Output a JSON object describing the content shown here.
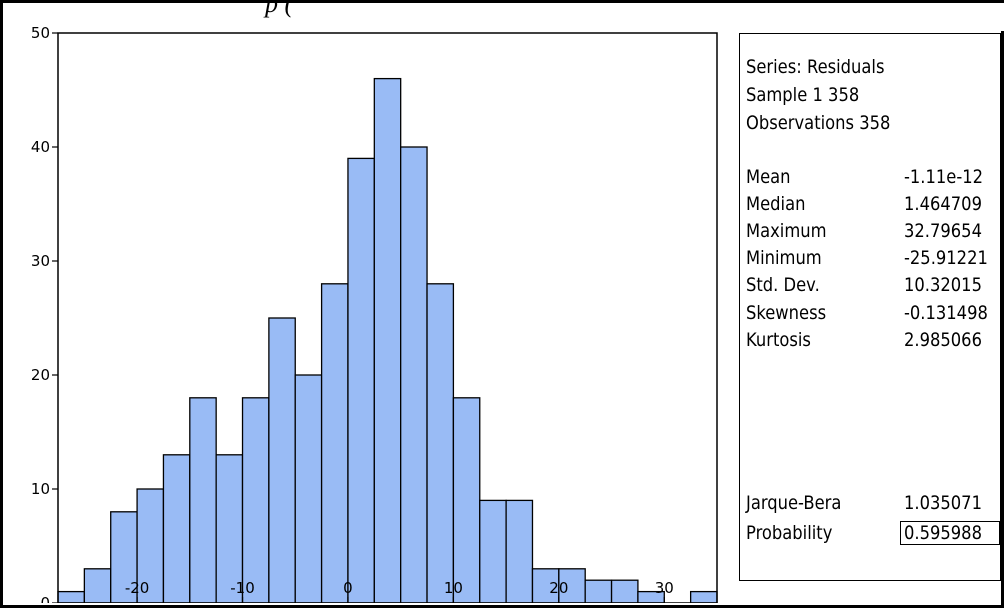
{
  "chart_data": {
    "type": "bar",
    "title": "",
    "xlabel": "",
    "ylabel": "",
    "bin_width": 2.5,
    "x_start": -27.5,
    "values": [
      1,
      3,
      8,
      10,
      13,
      18,
      13,
      18,
      25,
      20,
      28,
      39,
      46,
      40,
      28,
      18,
      9,
      9,
      3,
      3,
      2,
      2,
      1,
      0,
      1
    ],
    "xlim": [
      -27.5,
      35
    ],
    "ylim": [
      0,
      50
    ],
    "x_ticks": [
      -20,
      -10,
      0,
      10,
      20,
      30
    ],
    "y_ticks": [
      0,
      10,
      20,
      30,
      40,
      50
    ],
    "x_tick_labels": [
      "-20",
      "-10",
      "0",
      "10",
      "20",
      "30"
    ],
    "y_tick_labels": [
      "0",
      "10",
      "20",
      "30",
      "40",
      "50"
    ],
    "bar_color": "#99bbf5",
    "grid": false
  },
  "header_fragment": "p (",
  "stats": {
    "series_line": "Series: Residuals",
    "sample_line": "Sample 1 358",
    "observations_line": "Observations 358",
    "rows": [
      {
        "name": "Mean",
        "value": "-1.11e-12"
      },
      {
        "name": "Median",
        "value": "1.464709"
      },
      {
        "name": "Maximum",
        "value": "32.79654"
      },
      {
        "name": "Minimum",
        "value": "-25.91221"
      },
      {
        "name": "Std. Dev.",
        "value": "10.32015"
      },
      {
        "name": "Skewness",
        "value": "-0.131498"
      },
      {
        "name": "Kurtosis",
        "value": "2.985066"
      }
    ],
    "tests": [
      {
        "name": "Jarque-Bera",
        "value": "1.035071"
      },
      {
        "name": "Probability",
        "value": "0.595988"
      }
    ]
  }
}
